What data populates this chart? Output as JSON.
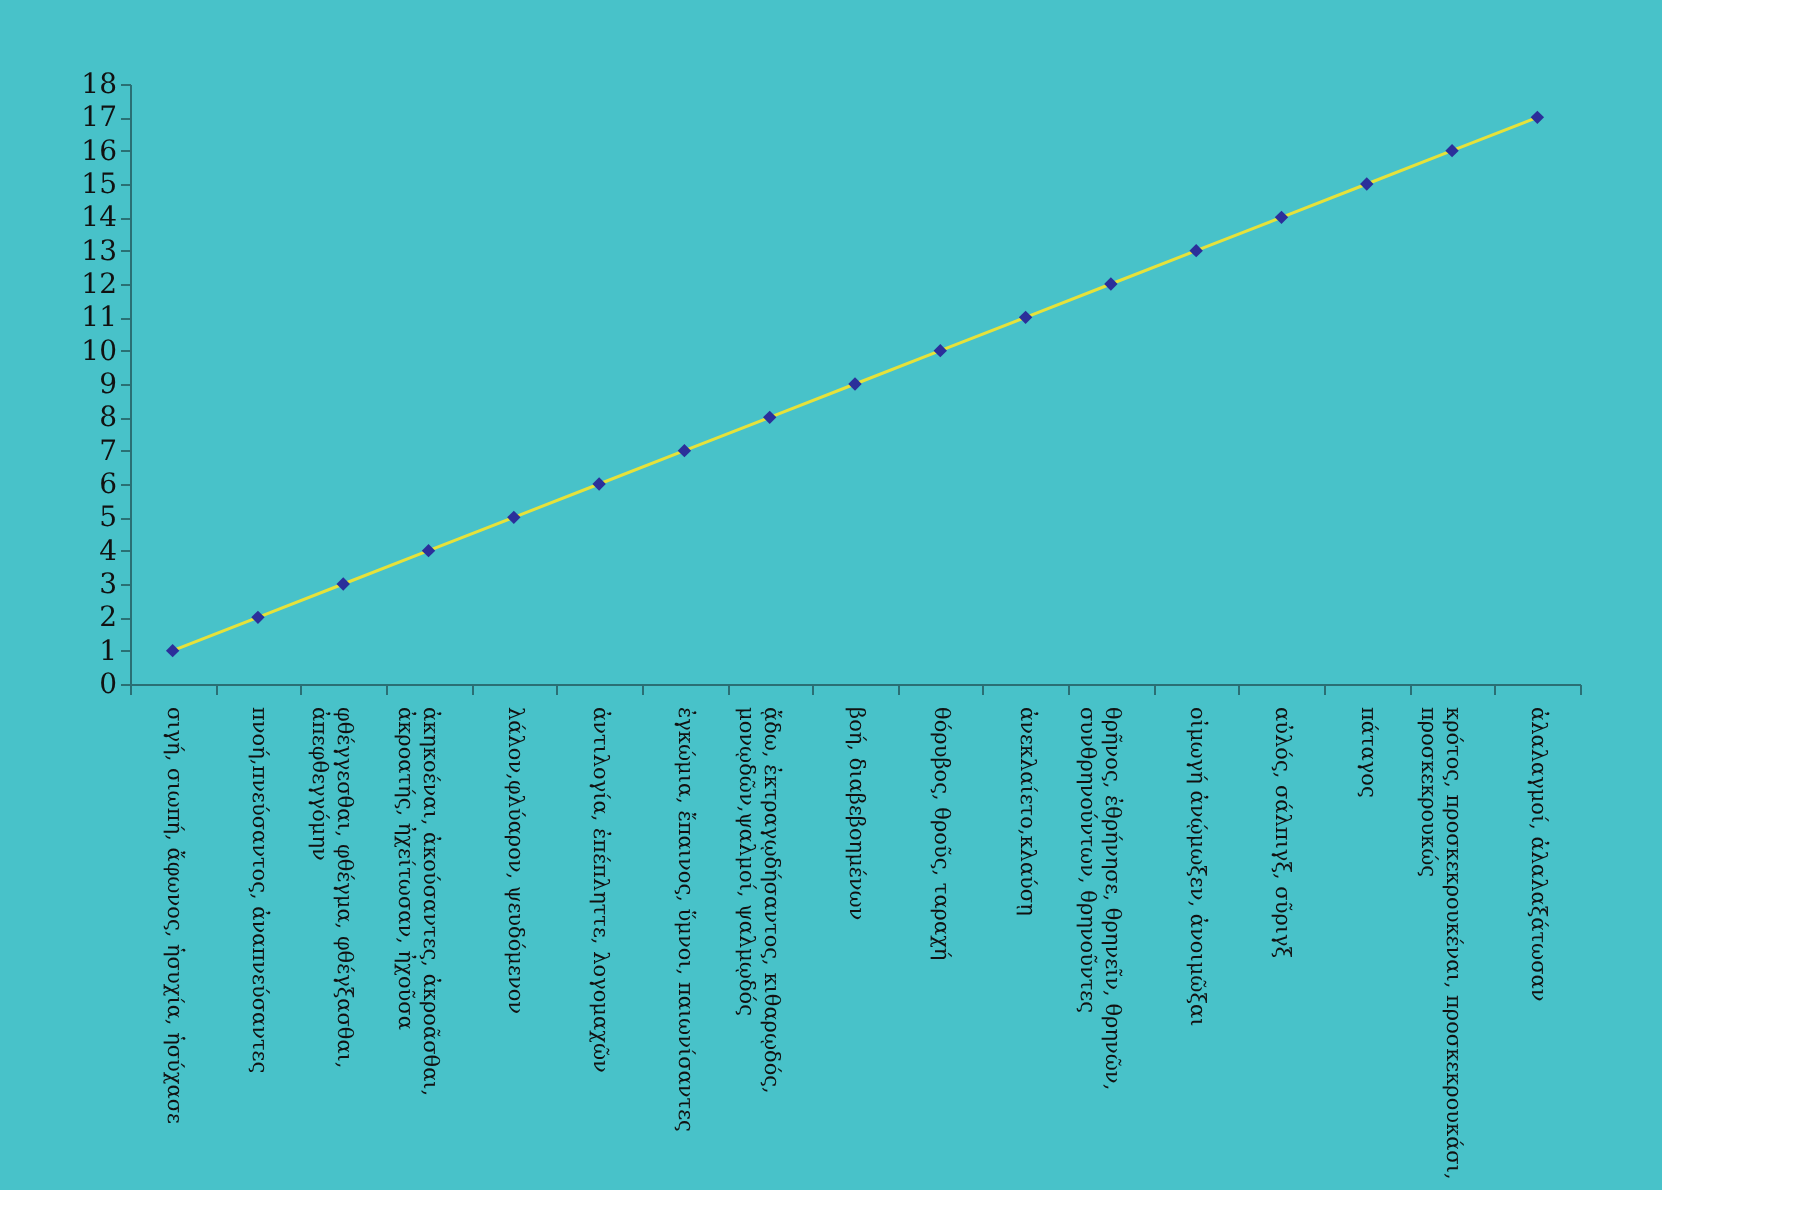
{
  "chart_data": {
    "type": "line",
    "categories": [
      "σιγή, σιωπή, ἄφωνος, ἡσυχία, ἡσύχασε",
      "πνοή,πνεύσαντος, ἀναπνεύσαντες",
      "φθέγγεσθαι, φθέγμα, φθέγξασθαι, ἀπεφθεγγόμην",
      "ἀκηκοέναι, ἀκούσαντες, ἀκροᾶσθαι, ἀκροατής, ἠχείτωσαν, ἠχοῦσα",
      "λάλον,φλύαρον, ψευδόμενον",
      "ἀντιλογία, ἐπέπληττε, λογομαχῶν",
      "ἐγκώμια, ἔπαινος, ὕμνοι, παιωνίσαντες",
      "ᾄδω, ἐκτραγῳδήσαντος, κιθαρῳδός, μονῳδῶν,ψαλμοί, ψαλμῳδός",
      "βοή, διαβεβοημένων",
      "θόρυβος, θροῦς, ταραχή",
      "ἀνεκλαίετο,κλαύσῃ",
      "θρῆνος, ἐθρήνησε, θρηνεῖν, θρηνῶν, συνθρηνούντων, θρηνοῦντες",
      "οἰμωγή ἀνῴμωξεν, ἀνοιμῶξαι",
      "αὐλός, σάλπιγξ, σῦριγξ",
      "πάταγος",
      "κρότος, προσκεκρουκέναι, προσκεκρουκάσι, προσκεκρουκώς",
      "ἀλαλαγμοί, ἀλαλαξάτωσαν"
    ],
    "series": [
      {
        "color": "#e6e23a",
        "marker": "none",
        "values": [
          1,
          2,
          3,
          4,
          5,
          6,
          7,
          8,
          9,
          10,
          11,
          12,
          13,
          14,
          15,
          16,
          17
        ]
      },
      {
        "type": "scatter",
        "marker": "diamond",
        "color": "#2b2f9a",
        "values": [
          1,
          2,
          3,
          4,
          5,
          6,
          7,
          8,
          9,
          10,
          11,
          12,
          13,
          14,
          15,
          16,
          17
        ]
      }
    ],
    "ylim": [
      0,
      18
    ],
    "yticks": [
      0,
      1,
      2,
      3,
      4,
      5,
      6,
      7,
      8,
      9,
      10,
      11,
      12,
      13,
      14,
      15,
      16,
      17,
      18
    ],
    "line_style": "solid",
    "grid": false
  }
}
